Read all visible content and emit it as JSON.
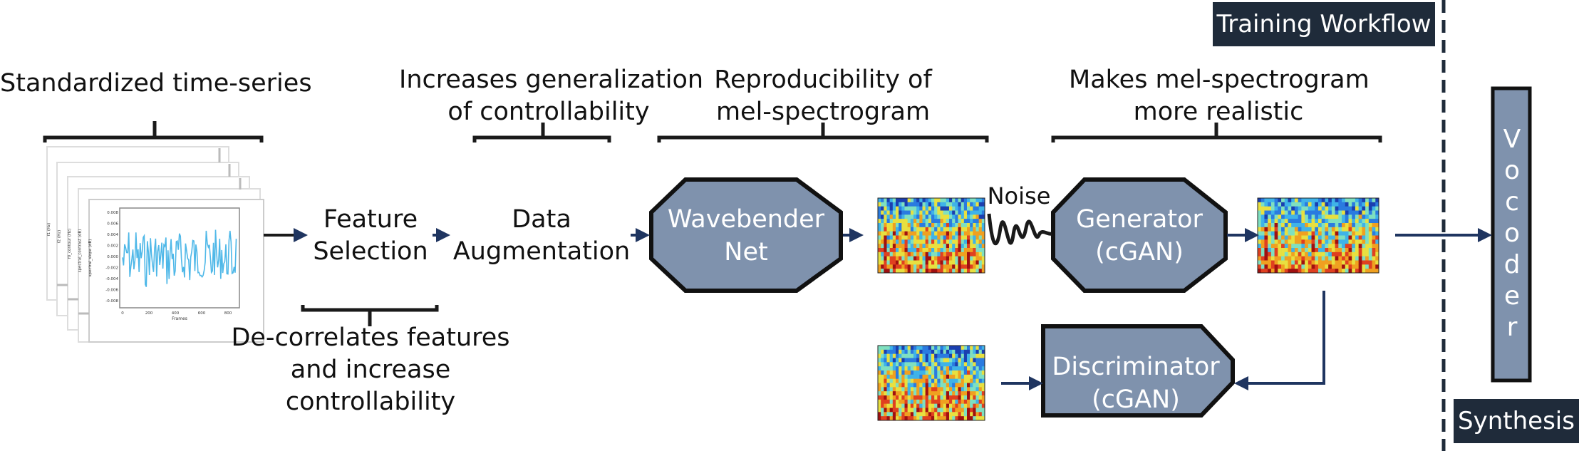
{
  "diagram": {
    "sections": {
      "training": "Training Workflow",
      "synthesis": "Synthesis"
    },
    "annotations": {
      "timeseries": [
        "Standardized time-series"
      ],
      "augment": [
        "Increases generalization",
        "of controllability"
      ],
      "wavebender": [
        "Reproducibility of",
        "mel-spectrogram"
      ],
      "gan": [
        "Makes mel-spectrogram",
        "more realistic"
      ],
      "decorrelate": [
        "De-correlates features",
        "and increase",
        "controllability"
      ]
    },
    "steps": {
      "feature_selection": [
        "Feature",
        "Selection"
      ],
      "data_augmentation": [
        "Data",
        "Augmentation"
      ],
      "wavebender": [
        "Wavebender",
        "Net"
      ],
      "generator": [
        "Generator",
        "(cGAN)"
      ],
      "discriminator": [
        "Discriminator",
        "(cGAN)"
      ],
      "noise": "Noise",
      "vocoder": [
        "V",
        "o",
        "c",
        "o",
        "d",
        "e",
        "r"
      ]
    },
    "plot": {
      "xlabel": "Frames",
      "ylabels": [
        "f1 (Hz)",
        "f2 (Hz)",
        "f0_contour (Hz)",
        "spectral_contrast (dB)",
        "spectral_slope (dB)"
      ],
      "yticks": [
        "0.008",
        "0.006",
        "0.004",
        "0.002",
        "0.000",
        "-0.002",
        "-0.004",
        "-0.006",
        "-0.008"
      ],
      "xticks": [
        "0",
        "200",
        "400",
        "600",
        "800"
      ]
    },
    "colors": {
      "node_fill": "#7f92ad",
      "node_stroke": "#111111",
      "arrow": "#1f3560",
      "tag_bg": "#1f2b3a",
      "series": "#4fb8e8"
    }
  }
}
